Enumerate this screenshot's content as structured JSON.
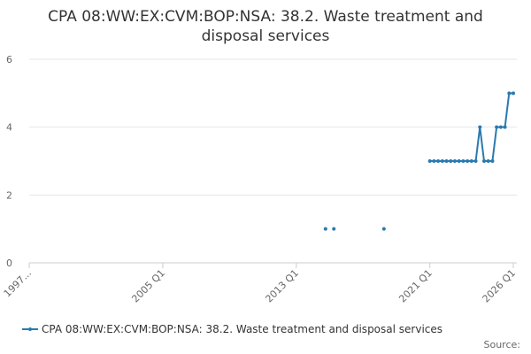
{
  "chart_data": {
    "type": "line",
    "title": "CPA 08:WW:EX:CVM:BOP:NSA: 38.2. Waste treatment and disposal services",
    "x": [
      "2014 Q4",
      "2015 Q1",
      "2015 Q2",
      "2015 Q3",
      "2015 Q4",
      "2016 Q1",
      "2016 Q2",
      "2016 Q3",
      "2016 Q4",
      "2017 Q1",
      "2017 Q2",
      "2017 Q3",
      "2017 Q4",
      "2018 Q1",
      "2018 Q2",
      "2018 Q3",
      "2018 Q4",
      "2019 Q1",
      "2019 Q2",
      "2019 Q3",
      "2019 Q4",
      "2020 Q1",
      "2020 Q2",
      "2020 Q3",
      "2020 Q4",
      "2021 Q1",
      "2021 Q2",
      "2021 Q3",
      "2021 Q4",
      "2022 Q1",
      "2022 Q2",
      "2022 Q3",
      "2022 Q4",
      "2023 Q1",
      "2023 Q2",
      "2023 Q3",
      "2023 Q4",
      "2024 Q1",
      "2024 Q2",
      "2024 Q3",
      "2024 Q4",
      "2025 Q1",
      "2025 Q2",
      "2025 Q3",
      "2025 Q4",
      "2026 Q1"
    ],
    "series": [
      {
        "name": "CPA 08:WW:EX:CVM:BOP:NSA: 38.2. Waste treatment and disposal services",
        "color": "#2a7ab0",
        "values": [
          1,
          null,
          1,
          null,
          null,
          null,
          null,
          null,
          null,
          null,
          null,
          null,
          null,
          null,
          1,
          null,
          null,
          null,
          null,
          null,
          null,
          null,
          null,
          null,
          null,
          3,
          3,
          3,
          3,
          3,
          3,
          3,
          3,
          3,
          3,
          3,
          3,
          4,
          3,
          3,
          3,
          4,
          4,
          4,
          5,
          5
        ]
      }
    ],
    "xticks": [
      "1997...",
      "2005 Q1",
      "2013 Q1",
      "2021 Q1",
      "2026 Q1"
    ],
    "ylim": [
      0,
      6
    ],
    "yticks": [
      0,
      2,
      4,
      6
    ],
    "grid": true,
    "source": "Source:"
  }
}
